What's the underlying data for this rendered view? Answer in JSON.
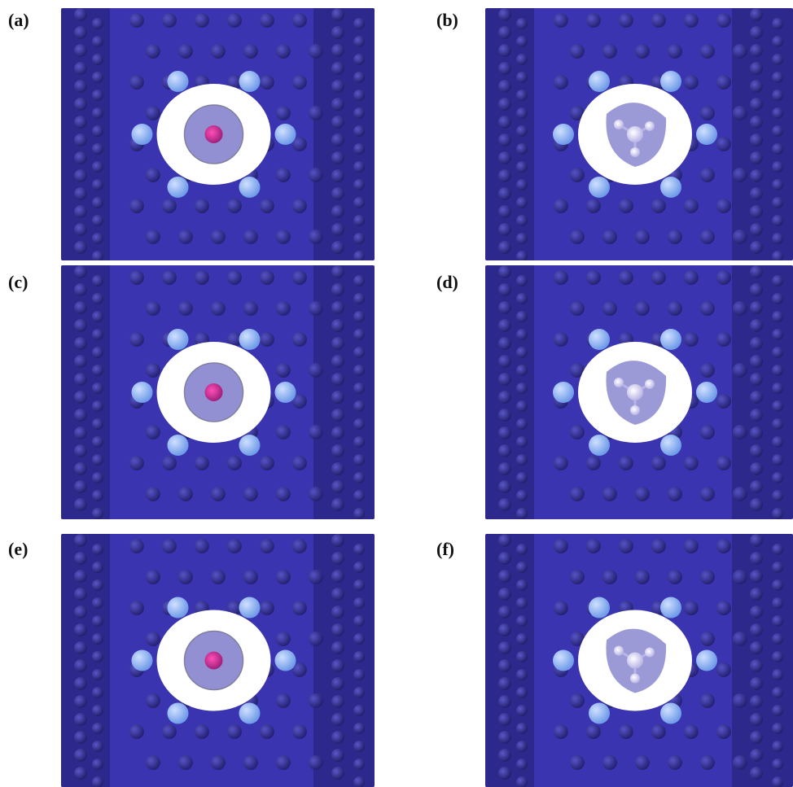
{
  "figure": {
    "panels": [
      {
        "id": "a",
        "label": "(a)",
        "guest": "ion"
      },
      {
        "id": "b",
        "label": "(b)",
        "guest": "molecule"
      },
      {
        "id": "c",
        "label": "(c)",
        "guest": "ion"
      },
      {
        "id": "d",
        "label": "(d)",
        "guest": "molecule"
      },
      {
        "id": "e",
        "label": "(e)",
        "guest": "ion"
      },
      {
        "id": "f",
        "label": "(f)",
        "guest": "molecule"
      }
    ],
    "colors": {
      "isosurface": "#3a34b0",
      "isosurface_dark": "#23206f",
      "atom_carbon": "#2a2792",
      "atom_nitrogen": "#6f9be8",
      "guest_ion": "#a0207a",
      "guest_molecule": "#b9b4e6",
      "background": "#ffffff"
    }
  }
}
